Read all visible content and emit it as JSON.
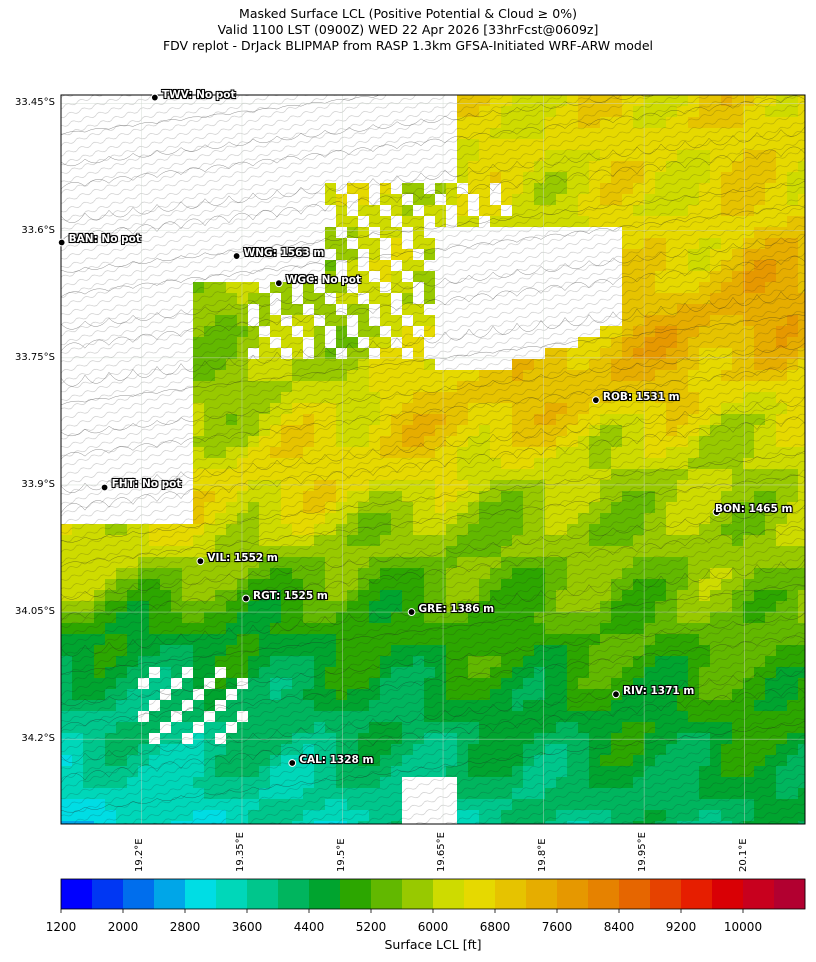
{
  "title_lines": [
    "Masked Surface LCL (Positive Potential & Cloud ≥ 0%)",
    "Valid 1100 LST (0900Z) WED 22 Apr 2026 [33hrFcst@0609z]",
    "FDV replot - DrJack BLIPMAP from RASP 1.3km GFSA-Initiated WRF-ARW model"
  ],
  "map_extent": {
    "lon_min": 19.08,
    "lon_max": 20.19,
    "lat_min": -34.3,
    "lat_max": -33.44
  },
  "lat_ticks": [
    {
      "value": -33.45,
      "label": "33.45°S"
    },
    {
      "value": -33.6,
      "label": "33.6°S"
    },
    {
      "value": -33.75,
      "label": "33.75°S"
    },
    {
      "value": -33.9,
      "label": "33.9°S"
    },
    {
      "value": -34.05,
      "label": "34.05°S"
    },
    {
      "value": -34.2,
      "label": "34.2°S"
    }
  ],
  "lon_ticks": [
    {
      "value": 19.2,
      "label": "19.2°E"
    },
    {
      "value": 19.35,
      "label": "19.35°E"
    },
    {
      "value": 19.5,
      "label": "19.5°E"
    },
    {
      "value": 19.65,
      "label": "19.65°E"
    },
    {
      "value": 19.8,
      "label": "19.8°E"
    },
    {
      "value": 19.95,
      "label": "19.95°E"
    },
    {
      "value": 20.1,
      "label": "20.1°E"
    }
  ],
  "stations": [
    {
      "label": "TWV: No pot",
      "lon": 19.22,
      "lat": -33.443
    },
    {
      "label": "BAN: No pot",
      "lon": 19.081,
      "lat": -33.614
    },
    {
      "label": "WNG: 1563 m",
      "lon": 19.342,
      "lat": -33.63
    },
    {
      "label": "WGC: No pot",
      "lon": 19.405,
      "lat": -33.662
    },
    {
      "label": "ROB: 1531 m",
      "lon": 19.878,
      "lat": -33.8
    },
    {
      "label": "FHT: No pot",
      "lon": 19.145,
      "lat": -33.903
    },
    {
      "label": "BON: 1465 m",
      "lon": 20.058,
      "lat": -33.932
    },
    {
      "label": "VIL: 1552 m",
      "lon": 19.288,
      "lat": -33.99
    },
    {
      "label": "RGT: 1525 m",
      "lon": 19.356,
      "lat": -34.034
    },
    {
      "label": "GRE: 1386 m",
      "lon": 19.603,
      "lat": -34.05
    },
    {
      "label": "RIV: 1371 m",
      "lon": 19.908,
      "lat": -34.147
    },
    {
      "label": "CAL: 1328 m",
      "lon": 19.425,
      "lat": -34.228
    }
  ],
  "colorbar": {
    "title": "Surface LCL [ft]",
    "min": 1200,
    "max": 10800,
    "step": 400,
    "tick_labels": [
      "1200",
      "2000",
      "2800",
      "3600",
      "4400",
      "5200",
      "6000",
      "6800",
      "7600",
      "8400",
      "9200",
      "10000"
    ],
    "colors": [
      "#0000ff",
      "#0037f3",
      "#006eed",
      "#00a6e8",
      "#00dde4",
      "#00d7b9",
      "#00c68c",
      "#00b55e",
      "#00a42f",
      "#2ca600",
      "#62b800",
      "#98c900",
      "#cedb00",
      "#e6d900",
      "#e6c300",
      "#e6ad00",
      "#e69800",
      "#e68200",
      "#e66600",
      "#e64200",
      "#e61e00",
      "#d90005",
      "#c8001e",
      "#b20030"
    ]
  },
  "colors": {
    "mask": "#ffffff",
    "terrain_contour": "#222222",
    "grid": "#cfd8cf"
  }
}
